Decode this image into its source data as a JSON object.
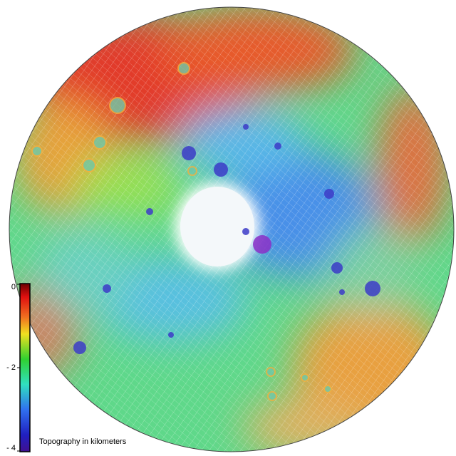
{
  "legend": {
    "title": "Topography in  kilometers",
    "range": [
      -4,
      0
    ],
    "ticks": [
      0,
      {
        "value": -2,
        "label": "- 2"
      },
      {
        "value": -4,
        "label": "- 4"
      }
    ]
  }
}
